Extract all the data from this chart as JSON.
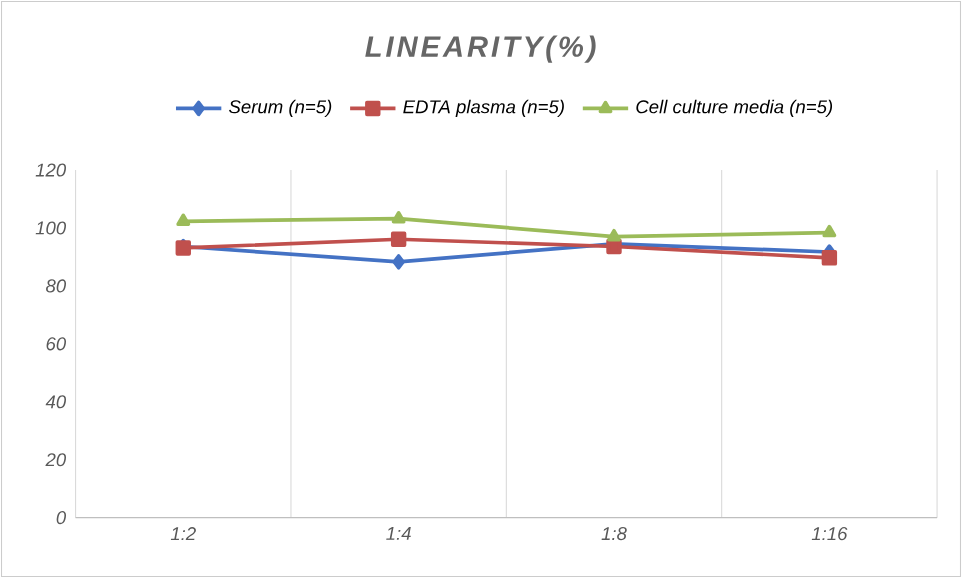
{
  "chart_data": {
    "type": "line",
    "title": "LINEARITY(%)",
    "categories": [
      "1:2",
      "1:4",
      "1:8",
      "1:16"
    ],
    "series": [
      {
        "name": "Serum (n=5)",
        "color": "#4472c4",
        "marker": "diamond",
        "values": [
          93.6,
          88.3,
          94.5,
          91.7
        ]
      },
      {
        "name": "EDTA plasma (n=5)",
        "color": "#c0504d",
        "marker": "square",
        "values": [
          93.1,
          96.1,
          93.6,
          89.7
        ]
      },
      {
        "name": "Cell culture media (n=5)",
        "color": "#9bbb59",
        "marker": "triangle",
        "values": [
          102.3,
          103.2,
          97,
          98.4
        ]
      }
    ],
    "ylim": [
      0,
      120
    ],
    "yticks": [
      0,
      20,
      40,
      60,
      80,
      100,
      120
    ],
    "grid": "x",
    "legend": "top"
  }
}
